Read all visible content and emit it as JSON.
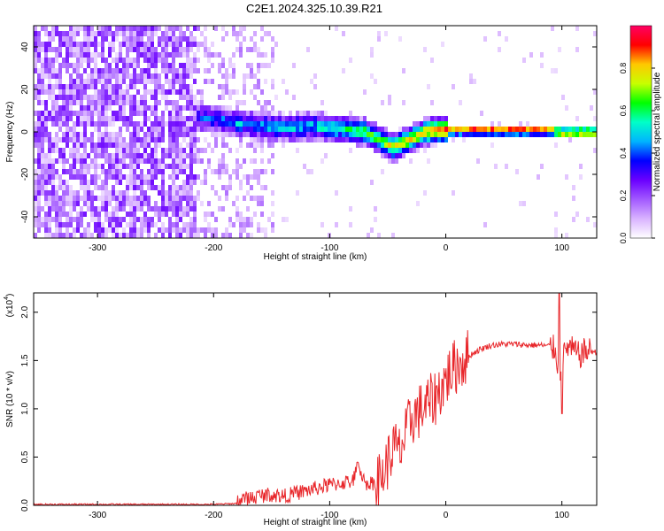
{
  "figure": {
    "title": "C2E1.2024.325.10.39.R21"
  },
  "chart_data": [
    {
      "type": "heatmap",
      "title": "C2E1.2024.325.10.39.R21",
      "xlabel": "Height of straight line (km)",
      "ylabel": "Frequency (Hz)",
      "xlim": [
        -355,
        130
      ],
      "ylim": [
        -50,
        50
      ],
      "xticks": [
        -300,
        -200,
        -100,
        0,
        100
      ],
      "xtick_labels": [
        "-300",
        "-200",
        "-100",
        "0",
        "100"
      ],
      "yticks": [
        -40,
        -20,
        0,
        20,
        40
      ],
      "ytick_labels": [
        "-40",
        "-20",
        "0",
        "20",
        "40"
      ],
      "colorbar": {
        "label": "Normalized spectral amplitude",
        "range": [
          0,
          1
        ],
        "ticks": [
          0.0,
          0.2,
          0.4,
          0.6,
          0.8
        ],
        "tick_labels": [
          "0.0",
          "0.2",
          "0.4",
          "0.6",
          "0.8"
        ],
        "colormap": [
          "#ffffff",
          "#d9b3ff",
          "#a259ff",
          "#6a00ff",
          "#0000ff",
          "#00b4ff",
          "#00ffc8",
          "#00ff00",
          "#c8ff00",
          "#ffc800",
          "#ff0000",
          "#ff0064"
        ]
      },
      "signal_track": {
        "x": [
          -215,
          -200,
          -180,
          -160,
          -140,
          -120,
          -100,
          -80,
          -70,
          -60,
          -50,
          -45,
          -40,
          -30,
          -20,
          -10,
          0,
          20,
          40,
          60,
          80,
          90,
          95,
          100,
          130
        ],
        "freq": [
          8,
          7,
          5,
          4,
          3,
          4,
          3,
          2,
          1,
          -2,
          -5,
          -6,
          -4,
          -2,
          1,
          2,
          2,
          2,
          2,
          2,
          2,
          2,
          1,
          1,
          1
        ],
        "amplitude": [
          0.3,
          0.35,
          0.4,
          0.4,
          0.45,
          0.45,
          0.5,
          0.55,
          0.6,
          0.65,
          0.7,
          0.7,
          0.75,
          0.75,
          0.8,
          0.85,
          0.9,
          0.95,
          0.95,
          0.95,
          0.95,
          0.9,
          0.9,
          0.95,
          0.95
        ],
        "noise_floor_region_x": [
          -355,
          -150
        ]
      }
    },
    {
      "type": "line",
      "xlabel": "Height of straight line (km)",
      "ylabel": "SNR (10 * v/v)",
      "y_multiplier_label": "(x10",
      "y_multiplier_exp": "4",
      "y_multiplier_close": ")",
      "xlim": [
        -355,
        130
      ],
      "ylim": [
        0,
        2.2
      ],
      "xticks": [
        -300,
        -200,
        -100,
        0,
        100
      ],
      "xtick_labels": [
        "-300",
        "-200",
        "-100",
        "0",
        "100"
      ],
      "yticks": [
        0,
        0.5,
        1.0,
        1.5,
        2.0
      ],
      "ytick_labels": [
        "0.0",
        "0.5",
        "1.0",
        "1.5",
        "2.0"
      ],
      "series": [
        {
          "color": "#e8262a",
          "x": [
            -355,
            -300,
            -250,
            -220,
            -200,
            -180,
            -170,
            -160,
            -150,
            -140,
            -130,
            -120,
            -110,
            -100,
            -90,
            -80,
            -75,
            -70,
            -60,
            -55,
            -50,
            -45,
            -40,
            -35,
            -30,
            -25,
            -20,
            -15,
            -10,
            -5,
            0,
            5,
            10,
            20,
            30,
            40,
            50,
            60,
            70,
            80,
            90,
            95,
            98,
            100,
            102,
            105,
            110,
            115,
            120,
            125,
            130
          ],
          "y": [
            0.01,
            0.01,
            0.01,
            0.01,
            0.01,
            0.02,
            0.04,
            0.07,
            0.08,
            0.06,
            0.09,
            0.12,
            0.15,
            0.18,
            0.2,
            0.22,
            0.4,
            0.2,
            0.2,
            0.3,
            0.45,
            0.6,
            0.55,
            0.7,
            0.9,
            0.95,
            1.0,
            1.05,
            1.1,
            1.2,
            1.3,
            1.4,
            1.45,
            1.55,
            1.62,
            1.66,
            1.67,
            1.67,
            1.66,
            1.66,
            1.65,
            1.6,
            1.3,
            1.6,
            1.55,
            1.65,
            1.6,
            1.55,
            1.6,
            1.6,
            1.58
          ]
        }
      ]
    }
  ]
}
